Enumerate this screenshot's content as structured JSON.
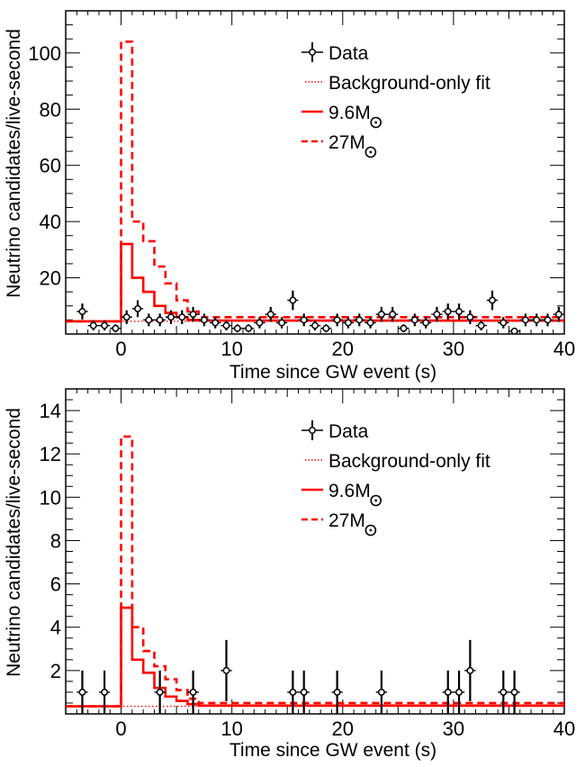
{
  "chart_data": [
    {
      "type": "scatter",
      "xlabel": "Time since GW event (s)",
      "ylabel": "Neutrino candidates/live-second",
      "xlim": [
        -5,
        40
      ],
      "ylim": [
        0,
        115
      ],
      "xticks": [
        0,
        10,
        20,
        30,
        40
      ],
      "yticks": [
        20,
        40,
        60,
        80,
        100
      ],
      "legend_position": "top-right",
      "grid": false,
      "background": 4.5,
      "legend": [
        {
          "label": "Data",
          "style": "points"
        },
        {
          "label": "Background-only fit",
          "style": "dotted"
        },
        {
          "label": "9.6M",
          "style": "solid"
        },
        {
          "label": "27M",
          "style": "dashed"
        }
      ],
      "data": {
        "x": [
          -3.5,
          -2.5,
          -1.5,
          -0.5,
          0.5,
          1.5,
          2.5,
          3.5,
          4.5,
          5.5,
          6.5,
          7.5,
          8.5,
          9.5,
          10.5,
          11.5,
          12.5,
          13.5,
          14.5,
          15.5,
          16.5,
          17.5,
          18.5,
          19.5,
          20.5,
          21.5,
          22.5,
          23.5,
          24.5,
          25.5,
          26.5,
          27.5,
          28.5,
          29.5,
          30.5,
          31.5,
          32.5,
          33.5,
          34.5,
          35.5,
          36.5,
          37.5,
          38.5,
          39.5
        ],
        "y": [
          8,
          3,
          3,
          2,
          6,
          9,
          5,
          5,
          6,
          6,
          7,
          5,
          4,
          3,
          2,
          2,
          4,
          7,
          4,
          12,
          5,
          3,
          2,
          5,
          4,
          5,
          4,
          7,
          7,
          2,
          5,
          4,
          7,
          8,
          8,
          6,
          3,
          12,
          4,
          1,
          5,
          5,
          5,
          7
        ]
      },
      "series_96": {
        "bins": [
          -5,
          0,
          1,
          2,
          3,
          4,
          5,
          6,
          7,
          40
        ],
        "values": [
          4.5,
          32,
          20,
          15,
          10,
          7.5,
          6,
          5,
          4.8
        ]
      },
      "series_27": {
        "bins": [
          -5,
          0,
          1,
          2,
          3,
          4,
          5,
          6,
          7,
          40
        ],
        "values": [
          4.5,
          104,
          40,
          33,
          24,
          18,
          12,
          8,
          6
        ]
      }
    },
    {
      "type": "scatter",
      "xlabel": "Time since GW event (s)",
      "ylabel": "Neutrino candidates/live-second",
      "xlim": [
        -5,
        40
      ],
      "ylim": [
        0,
        15
      ],
      "xticks": [
        0,
        10,
        20,
        30,
        40
      ],
      "yticks": [
        2,
        4,
        6,
        8,
        10,
        12,
        14
      ],
      "legend_position": "top-right",
      "grid": false,
      "background": 0.35,
      "legend": [
        {
          "label": "Data",
          "style": "points"
        },
        {
          "label": "Background-only fit",
          "style": "dotted"
        },
        {
          "label": "9.6M",
          "style": "solid"
        },
        {
          "label": "27M",
          "style": "dashed"
        }
      ],
      "data": {
        "x": [
          -3.5,
          -1.5,
          3.5,
          6.5,
          9.5,
          15.5,
          16.5,
          19.5,
          23.5,
          29.5,
          30.5,
          31.5,
          34.5,
          35.5
        ],
        "y": [
          1,
          1,
          1,
          1,
          2,
          1,
          1,
          1,
          1,
          1,
          1,
          2,
          1,
          1
        ]
      },
      "series_96": {
        "bins": [
          -5,
          0,
          1,
          2,
          3,
          4,
          5,
          6,
          7,
          40
        ],
        "values": [
          0.35,
          4.9,
          2.5,
          1.9,
          1.2,
          0.8,
          0.6,
          0.45,
          0.38
        ]
      },
      "series_27": {
        "bins": [
          -5,
          0,
          1,
          2,
          3,
          4,
          5,
          6,
          7,
          40
        ],
        "values": [
          0.35,
          12.8,
          4.0,
          2.9,
          2.2,
          1.6,
          1.1,
          0.7,
          0.5
        ]
      }
    }
  ]
}
